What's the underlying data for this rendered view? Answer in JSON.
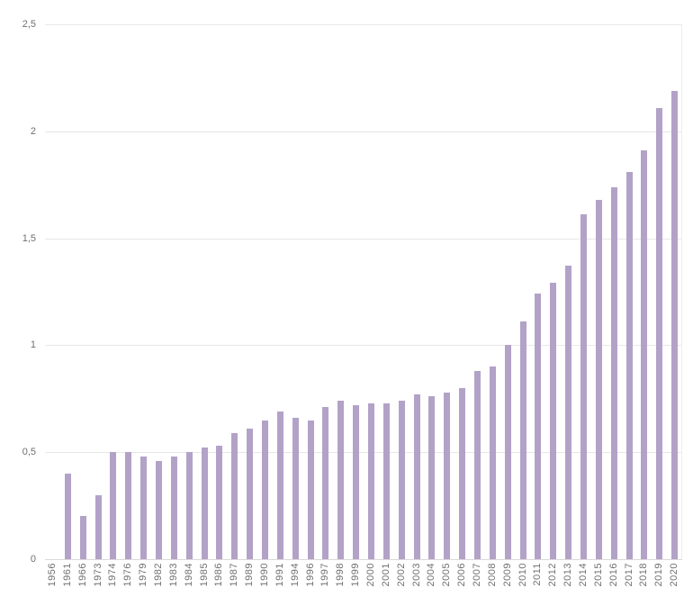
{
  "chart_data": {
    "type": "bar",
    "title": "",
    "xlabel": "",
    "ylabel": "",
    "legend": false,
    "grid": true,
    "ylim": [
      0,
      2.5
    ],
    "y_ticks": [
      0,
      0.5,
      1,
      1.5,
      2,
      2.5
    ],
    "y_tick_labels": [
      "0",
      "0,5",
      "1",
      "1,5",
      "2",
      "2,5"
    ],
    "categories": [
      "1956",
      "1961",
      "1966",
      "1973",
      "1974",
      "1976",
      "1979",
      "1982",
      "1983",
      "1984",
      "1985",
      "1986",
      "1987",
      "1989",
      "1990",
      "1991",
      "1994",
      "1996",
      "1997",
      "1998",
      "1999",
      "2000",
      "2001",
      "2002",
      "2003",
      "2004",
      "2005",
      "2006",
      "2007",
      "2008",
      "2009",
      "2010",
      "2011",
      "2012",
      "2013",
      "2014",
      "2015",
      "2016",
      "2017",
      "2018",
      "2019",
      "2020"
    ],
    "values": [
      0,
      0.4,
      0.2,
      0.3,
      0.5,
      0.5,
      0.48,
      0.46,
      0.48,
      0.5,
      0.52,
      0.53,
      0.59,
      0.61,
      0.65,
      0.69,
      0.66,
      0.65,
      0.71,
      0.74,
      0.72,
      0.73,
      0.73,
      0.74,
      0.77,
      0.76,
      0.78,
      0.8,
      0.88,
      0.9,
      1.0,
      1.11,
      1.24,
      1.29,
      1.37,
      1.61,
      1.68,
      1.74,
      1.81,
      1.91,
      2.11,
      2.19
    ],
    "colors": {
      "bar": "#b3a2c7",
      "gridline": "#e7e7e7",
      "axis_line": "#d9d9d9",
      "tick_label": "#707070",
      "background": "#ffffff"
    },
    "legend_position": "none"
  }
}
